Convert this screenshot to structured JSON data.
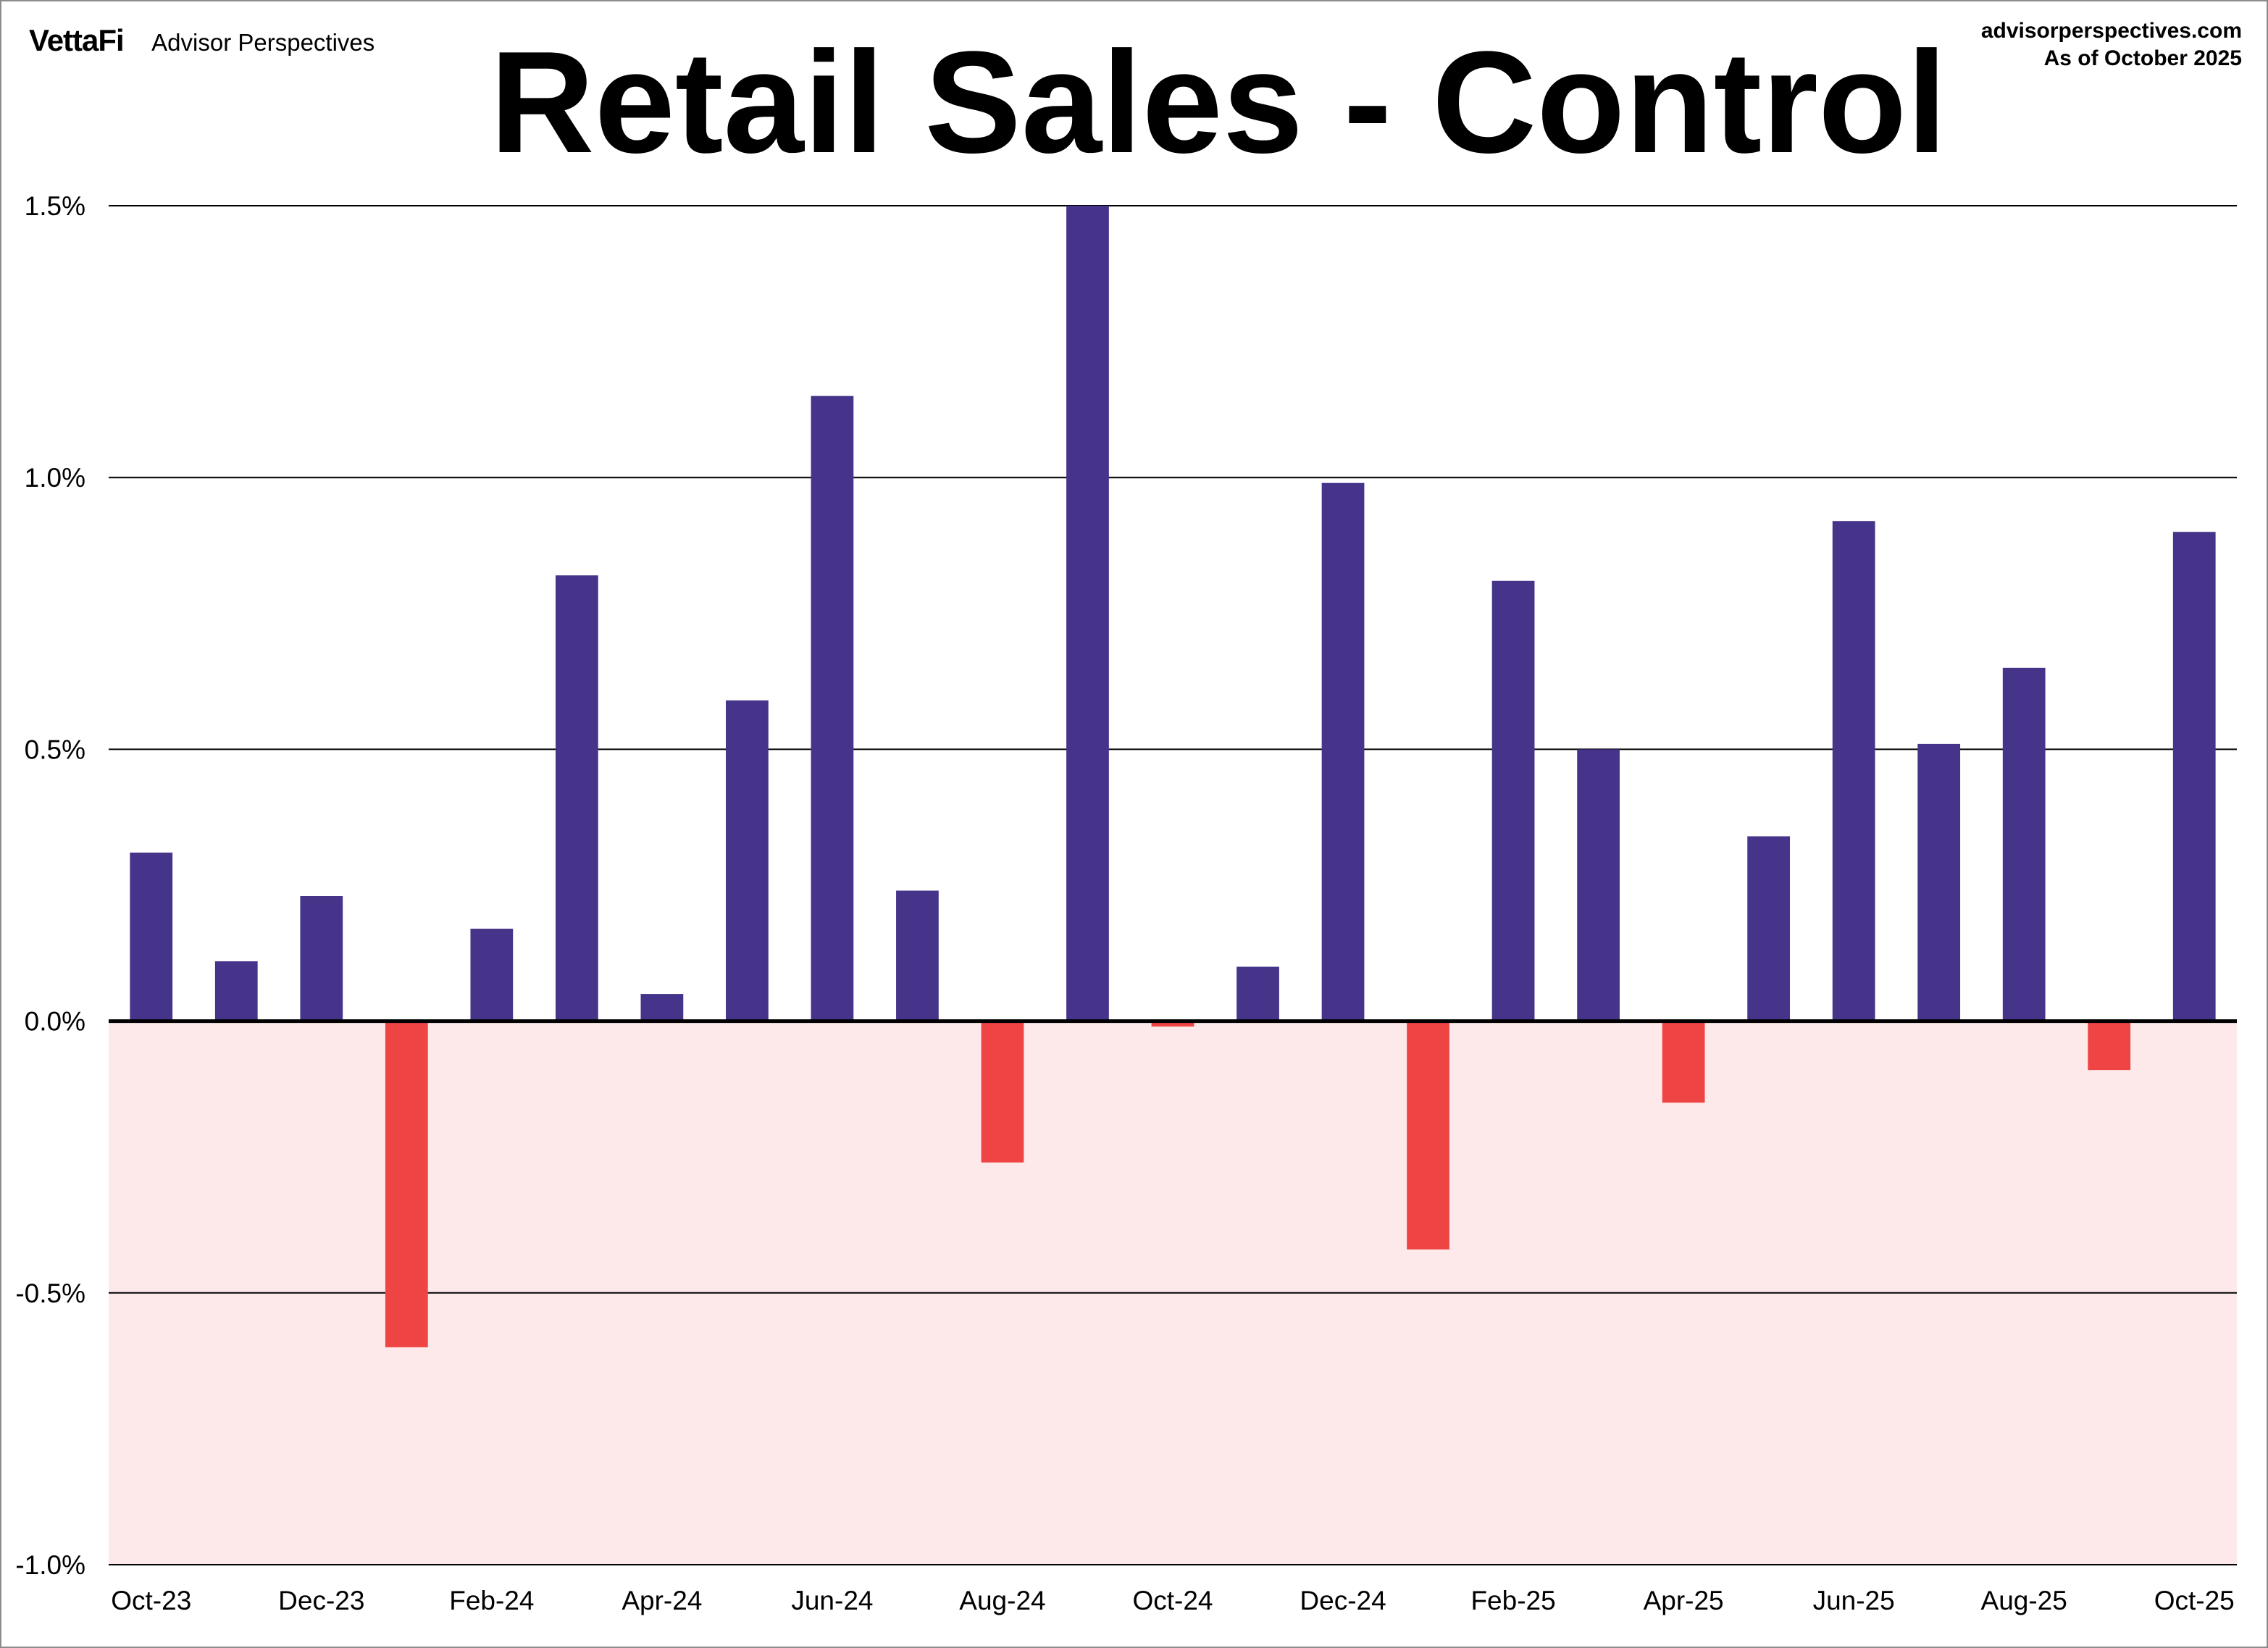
{
  "header": {
    "logo": "VettaFi",
    "publisher": "Advisor Perspectives",
    "website": "advisorperspectives.com",
    "as_of": "As of October 2025"
  },
  "colors": {
    "positive_bar": "#46348a",
    "negative_bar": "#ef4444",
    "negative_zone": "#fde9ea",
    "gridline": "#000000"
  },
  "chart_data": {
    "type": "bar",
    "title": "Retail Sales - Control",
    "xlabel": "",
    "ylabel": "",
    "ylim": [
      -1.0,
      1.5
    ],
    "y_ticks": [
      {
        "value": 1.5,
        "label": "1.5%"
      },
      {
        "value": 1.0,
        "label": "1.0%"
      },
      {
        "value": 0.5,
        "label": "0.5%"
      },
      {
        "value": 0.0,
        "label": "0.0%"
      },
      {
        "value": -0.5,
        "label": "-0.5%"
      },
      {
        "value": -1.0,
        "label": "-1.0%"
      }
    ],
    "grid": true,
    "negative_region_shaded": true,
    "categories": [
      "Oct-23",
      "Nov-23",
      "Dec-23",
      "Jan-24",
      "Feb-24",
      "Mar-24",
      "Apr-24",
      "May-24",
      "Jun-24",
      "Jul-24",
      "Aug-24",
      "Sep-24",
      "Oct-24",
      "Nov-24",
      "Dec-24",
      "Jan-25",
      "Feb-25",
      "Mar-25",
      "Apr-25",
      "May-25",
      "Jun-25",
      "Jul-25",
      "Aug-25",
      "Sep-25",
      "Oct-25"
    ],
    "x_tick_labels": [
      "Oct-23",
      "Dec-23",
      "Feb-24",
      "Apr-24",
      "Jun-24",
      "Aug-24",
      "Oct-24",
      "Dec-24",
      "Feb-25",
      "Apr-25",
      "Jun-25",
      "Aug-25",
      "Oct-25"
    ],
    "values": [
      0.31,
      0.11,
      0.23,
      -0.6,
      0.17,
      0.82,
      0.05,
      0.59,
      1.15,
      0.24,
      -0.26,
      1.5,
      -0.01,
      0.1,
      0.99,
      -0.42,
      0.81,
      0.5,
      -0.15,
      0.34,
      0.92,
      0.51,
      0.65,
      -0.09,
      0.9
    ]
  }
}
